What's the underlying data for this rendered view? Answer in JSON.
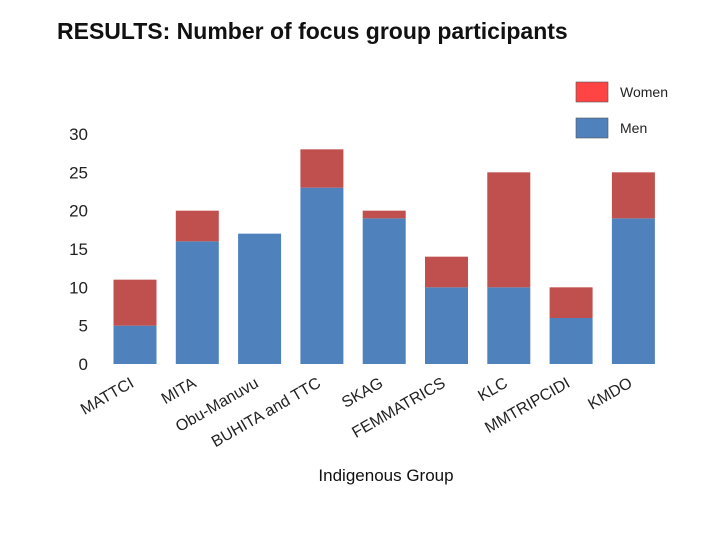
{
  "page": {
    "title": "RESULTS: Number of focus group participants"
  },
  "colors": {
    "men": "#4F81BD",
    "women": "#C0504D",
    "women_legend": "#FF4444"
  },
  "chart_data": {
    "type": "bar",
    "stacked": true,
    "title": "",
    "xlabel": "Indigenous Group",
    "ylabel": "",
    "ylim": [
      0,
      30
    ],
    "yticks": [
      0,
      5,
      10,
      15,
      20,
      25,
      30
    ],
    "grid": false,
    "legend_position": "top-right",
    "categories": [
      "MATTCI",
      "MITA",
      "Obu-Manuvu",
      "BUHITA and TTC",
      "SKAG",
      "FEMMATRICS",
      "KLC",
      "MMTRIPCIDI",
      "KMDO"
    ],
    "series": [
      {
        "name": "Men",
        "values": [
          5,
          16,
          17,
          23,
          19,
          10,
          10,
          6,
          19
        ]
      },
      {
        "name": "Women",
        "values": [
          6,
          4,
          0,
          5,
          1,
          4,
          15,
          4,
          6
        ]
      }
    ],
    "legend": [
      {
        "name": "Women"
      },
      {
        "name": "Men"
      }
    ]
  }
}
